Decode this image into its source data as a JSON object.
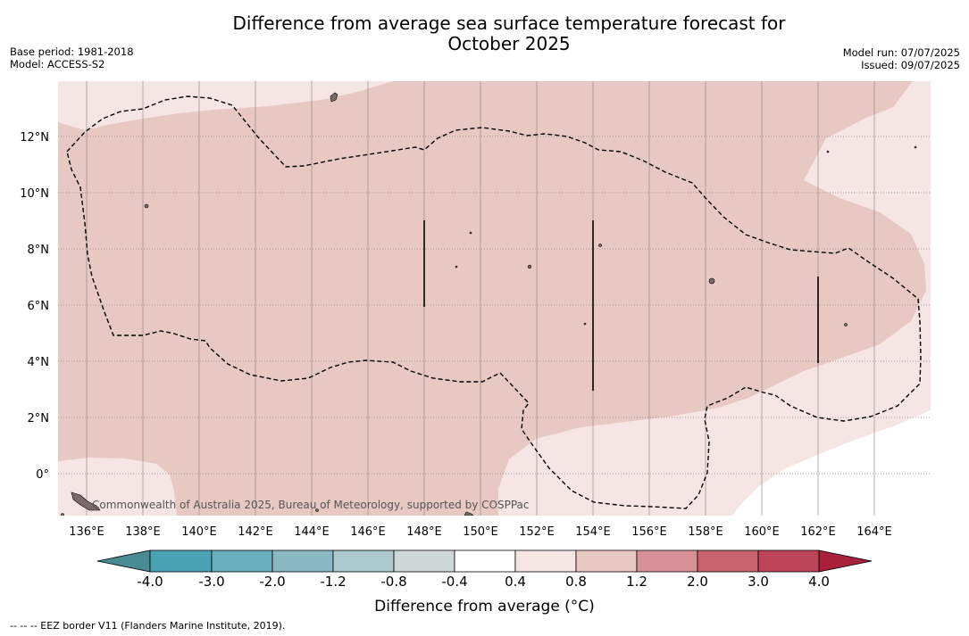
{
  "title": {
    "line1": "Difference from average sea surface temperature forecast for",
    "line2": "October 2025"
  },
  "meta_left": {
    "base_period": "Base period: 1981-2018",
    "model": "Model: ACCESS-S2"
  },
  "meta_right": {
    "model_run": "Model run: 07/07/2025",
    "issued": "Issued: 09/07/2025"
  },
  "map": {
    "lon_ticks": [
      "136°E",
      "138°E",
      "140°E",
      "142°E",
      "144°E",
      "146°E",
      "148°E",
      "150°E",
      "152°E",
      "154°E",
      "156°E",
      "158°E",
      "160°E",
      "162°E",
      "164°E"
    ],
    "lat_ticks": [
      "12°N",
      "10°N",
      "8°N",
      "6°N",
      "4°N",
      "2°N",
      "0°"
    ],
    "lon_range": [
      135.0,
      166.0
    ],
    "lat_range": [
      -1.5,
      14.0
    ],
    "colors": {
      "anomaly_0_4_to_0_8": "#f5e6e4",
      "anomaly_0_8_to_1_2": "#e8c8c3",
      "neutral": "#ffffff",
      "eez_border": "#000000",
      "land": "#7a6a6a"
    },
    "copyright": "Commonwealth of Australia 2025, Bureau of Meteorology, supported by COSPPac"
  },
  "colorbar": {
    "labels": [
      "-4.0",
      "-3.0",
      "-2.0",
      "-1.2",
      "-0.8",
      "-0.4",
      "0.4",
      "0.8",
      "1.2",
      "2.0",
      "3.0",
      "4.0"
    ],
    "colors": [
      "#4a8a92",
      "#4aa3b3",
      "#6aafbf",
      "#8ab9c4",
      "#acc9ce",
      "#cfd8d9",
      "#ffffff",
      "#f5e6e4",
      "#e8c8c3",
      "#d89098",
      "#c8646e",
      "#be4458",
      "#a8203a"
    ],
    "label": "Difference from average (°C)"
  },
  "footnote": "--  --  -- EEZ border V11 (Flanders Marine Institute, 2019)."
}
